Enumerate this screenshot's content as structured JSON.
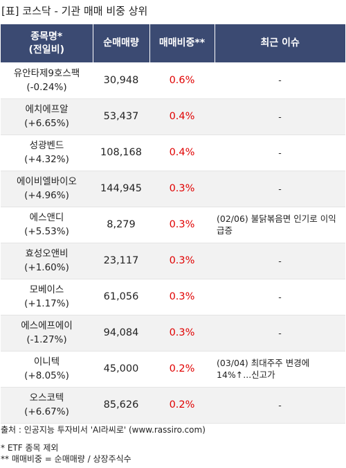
{
  "title": "[표] 코스닥 - 기관 매매 비중 상위",
  "header": {
    "col1_line1": "종목명*",
    "col1_line2": "(전일비)",
    "col2": "순매매량",
    "col3": "매매비중**",
    "col4": "최근 이슈"
  },
  "rows": [
    {
      "name": "유안타제9호스팩",
      "change": "(-0.24%)",
      "volume": "30,948",
      "ratio": "0.6%",
      "issue": "-"
    },
    {
      "name": "에치에프알",
      "change": "(+6.65%)",
      "volume": "53,437",
      "ratio": "0.4%",
      "issue": "-"
    },
    {
      "name": "성광벤드",
      "change": "(+4.32%)",
      "volume": "108,168",
      "ratio": "0.4%",
      "issue": "-"
    },
    {
      "name": "에이비엘바이오",
      "change": "(+4.96%)",
      "volume": "144,945",
      "ratio": "0.3%",
      "issue": "-"
    },
    {
      "name": "에스앤디",
      "change": "(+5.53%)",
      "volume": "8,279",
      "ratio": "0.3%",
      "issue": "(02/06) 불닭볶음면 인기로 이익 급증"
    },
    {
      "name": "효성오앤비",
      "change": "(+1.60%)",
      "volume": "23,117",
      "ratio": "0.3%",
      "issue": "-"
    },
    {
      "name": "모베이스",
      "change": "(+1.17%)",
      "volume": "61,056",
      "ratio": "0.3%",
      "issue": "-"
    },
    {
      "name": "에스에프에이",
      "change": "(-1.27%)",
      "volume": "94,084",
      "ratio": "0.3%",
      "issue": "-"
    },
    {
      "name": "이니텍",
      "change": "(+8.05%)",
      "volume": "45,000",
      "ratio": "0.2%",
      "issue": "(03/04) 최대주주 변경에 14%↑...신고가"
    },
    {
      "name": "오스코텍",
      "change": "(+6.67%)",
      "volume": "85,626",
      "ratio": "0.2%",
      "issue": "-"
    }
  ],
  "footer": {
    "source": "출처 : 인공지능 투자비서 'AI라씨로' (www.rassiro.com)",
    "note1": "* ETF 종목 제외",
    "note2": "** 매매비중 = 순매매량 / 상장주식수"
  },
  "colors": {
    "header_bg": "#3b4a72",
    "ratio_text": "#e00000",
    "row_alt_bg": "#f2f2f2"
  }
}
